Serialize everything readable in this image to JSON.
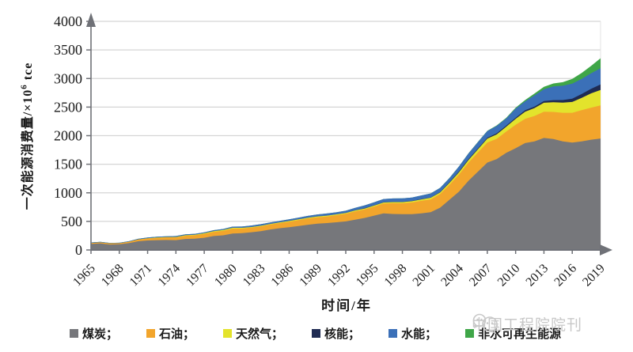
{
  "colors": {
    "background": "#FFFFFF",
    "axis": "#6F7177",
    "grid": "#D5D5D5",
    "right_border": "#E3E3E3",
    "text": "#1A1A1A",
    "watermark": "#C8C8C8"
  },
  "chart_data": {
    "type": "area",
    "stacked": true,
    "xlabel": "时间/年",
    "ylabel": "一次能源消费量/×10⁶ tce",
    "ylabel_parts": {
      "prefix": "一次能源消费量/×10",
      "superscript": "6",
      "suffix": " tce"
    },
    "ylim": [
      0,
      4000
    ],
    "y_ticks": [
      0,
      500,
      1000,
      1500,
      2000,
      2500,
      3000,
      3500,
      4000
    ],
    "x_ticks": [
      1965,
      1968,
      1971,
      1974,
      1977,
      1980,
      1983,
      1986,
      1989,
      1992,
      1995,
      1998,
      2001,
      2004,
      2007,
      2010,
      2013,
      2016,
      2019
    ],
    "grid": "horizontal",
    "legend_position": "bottom",
    "x": [
      1965,
      1966,
      1967,
      1968,
      1969,
      1970,
      1971,
      1972,
      1973,
      1974,
      1975,
      1976,
      1977,
      1978,
      1979,
      1980,
      1981,
      1982,
      1983,
      1984,
      1985,
      1986,
      1987,
      1988,
      1989,
      1990,
      1991,
      1992,
      1993,
      1994,
      1995,
      1996,
      1997,
      1998,
      1999,
      2000,
      2001,
      2002,
      2003,
      2004,
      2005,
      2006,
      2007,
      2008,
      2009,
      2010,
      2011,
      2012,
      2013,
      2014,
      2015,
      2016,
      2017,
      2018,
      2019
    ],
    "series": [
      {
        "name": "煤炭",
        "color": "#76777B",
        "values": [
          105,
          113,
          96,
          99,
          119,
          152,
          166,
          171,
          174,
          172,
          193,
          197,
          213,
          243,
          256,
          288,
          293,
          310,
          330,
          358,
          380,
          397,
          420,
          441,
          460,
          470,
          485,
          500,
          530,
          560,
          600,
          640,
          630,
          625,
          625,
          640,
          660,
          740,
          880,
          1020,
          1210,
          1370,
          1530,
          1590,
          1700,
          1780,
          1870,
          1900,
          1960,
          1940,
          1900,
          1880,
          1900,
          1930,
          1950
        ]
      },
      {
        "name": "石油",
        "color": "#F2A52C",
        "values": [
          16,
          18,
          17,
          18,
          22,
          29,
          35,
          41,
          46,
          48,
          55,
          60,
          67,
          73,
          78,
          85,
          81,
          80,
          82,
          86,
          90,
          96,
          102,
          108,
          112,
          115,
          122,
          132,
          145,
          148,
          158,
          172,
          188,
          192,
          205,
          220,
          225,
          238,
          262,
          300,
          315,
          335,
          350,
          355,
          370,
          410,
          425,
          445,
          460,
          475,
          500,
          520,
          545,
          560,
          580
        ]
      },
      {
        "name": "天然气",
        "color": "#E3E32C",
        "values": [
          1,
          1,
          1,
          1,
          2,
          3,
          4,
          5,
          6,
          7,
          9,
          10,
          12,
          14,
          15,
          14,
          13,
          12,
          12,
          12,
          13,
          14,
          14,
          14,
          15,
          15,
          16,
          16,
          17,
          17,
          18,
          19,
          20,
          21,
          23,
          25,
          28,
          30,
          34,
          40,
          47,
          56,
          67,
          77,
          85,
          103,
          125,
          138,
          156,
          170,
          177,
          190,
          215,
          250,
          270
        ]
      },
      {
        "name": "核能",
        "color": "#1F2B52",
        "values": [
          0,
          0,
          0,
          0,
          0,
          0,
          0,
          0,
          0,
          0,
          0,
          0,
          0,
          0,
          0,
          0,
          0,
          0,
          0,
          0,
          0,
          0,
          0,
          0,
          0,
          0,
          0,
          0,
          2,
          5,
          4,
          4,
          4,
          4,
          4,
          5,
          5,
          7,
          12,
          14,
          15,
          15,
          17,
          19,
          19,
          20,
          24,
          27,
          30,
          36,
          46,
          58,
          68,
          80,
          95
        ]
      },
      {
        "name": "水能",
        "color": "#3B70B8",
        "values": [
          9,
          10,
          9,
          8,
          9,
          11,
          13,
          14,
          14,
          16,
          17,
          16,
          17,
          16,
          18,
          21,
          23,
          25,
          27,
          25,
          27,
          29,
          30,
          33,
          34,
          38,
          36,
          39,
          43,
          50,
          54,
          57,
          59,
          62,
          60,
          63,
          70,
          72,
          72,
          88,
          100,
          110,
          115,
          130,
          125,
          160,
          155,
          195,
          205,
          240,
          250,
          263,
          265,
          272,
          285
        ]
      },
      {
        "name": "非水可再生能源",
        "color": "#3FA648",
        "values": [
          0,
          0,
          0,
          0,
          0,
          0,
          0,
          0,
          0,
          0,
          0,
          0,
          0,
          0,
          0,
          0,
          0,
          0,
          0,
          0,
          0,
          0,
          0,
          0,
          0,
          0,
          0,
          0,
          0,
          0,
          0,
          0,
          0,
          0,
          0,
          1,
          1,
          1,
          2,
          2,
          3,
          4,
          6,
          9,
          12,
          17,
          24,
          33,
          43,
          53,
          63,
          81,
          103,
          130,
          175
        ]
      }
    ]
  },
  "legend": {
    "items": [
      {
        "label": "煤炭；"
      },
      {
        "label": "石油；"
      },
      {
        "label": "天然气；"
      },
      {
        "label": "核能；"
      },
      {
        "label": "水能；"
      },
      {
        "label": "非水可再生能源"
      }
    ]
  },
  "watermark": {
    "text": "中国工程院院刊"
  }
}
